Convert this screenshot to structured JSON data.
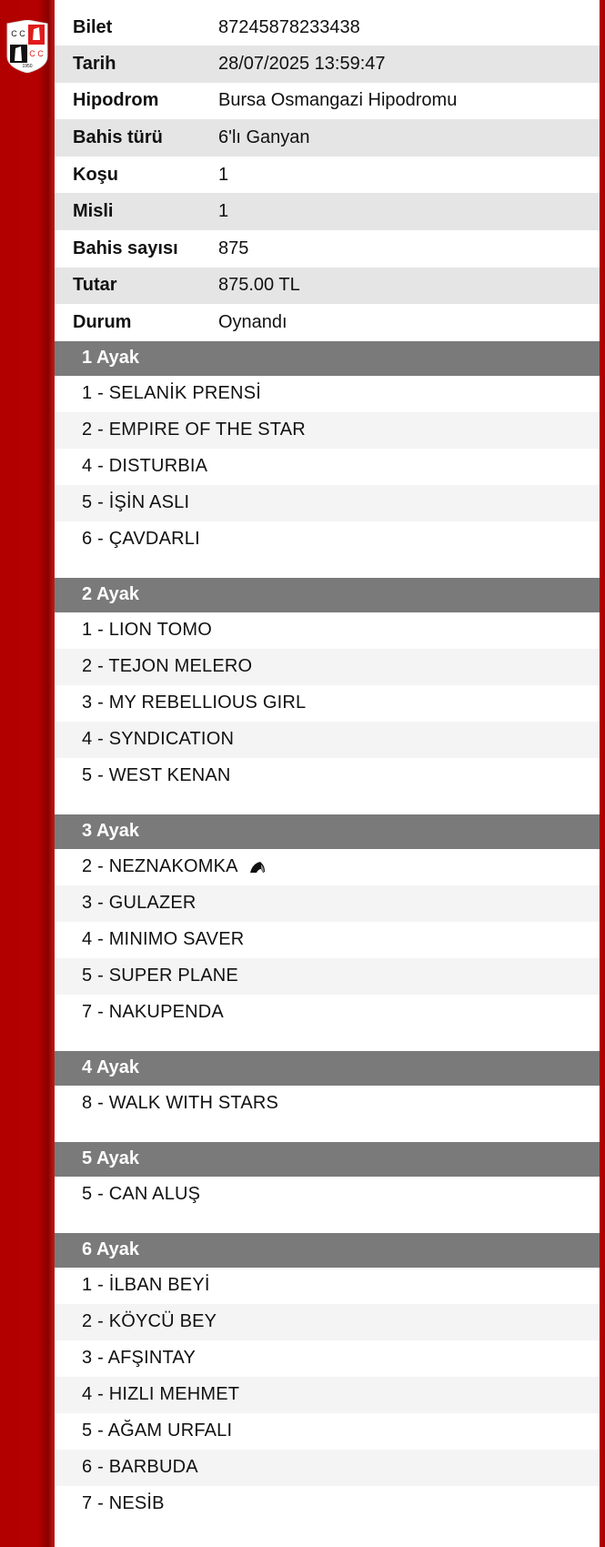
{
  "ticket": [
    {
      "label": "Bilet",
      "value": "87245878233438"
    },
    {
      "label": "Tarih",
      "value": "28/07/2025 13:59:47"
    },
    {
      "label": "Hipodrom",
      "value": "Bursa Osmangazi Hipodromu"
    },
    {
      "label": "Bahis türü",
      "value": "6'lı Ganyan"
    },
    {
      "label": "Koşu",
      "value": "1"
    },
    {
      "label": "Misli",
      "value": "1"
    },
    {
      "label": "Bahis sayısı",
      "value": "875"
    },
    {
      "label": "Tutar",
      "value": "875.00 TL"
    },
    {
      "label": "Durum",
      "value": "Oynandı"
    }
  ],
  "legs": [
    {
      "title": "1 Ayak",
      "horses": [
        "1 - SELANİK PRENSİ",
        "2 - EMPIRE OF THE STAR",
        "4 - DISTURBIA",
        "5 - İŞİN ASLI",
        "6 - ÇAVDARLI"
      ]
    },
    {
      "title": "2 Ayak",
      "horses": [
        "1 - LION TOMO",
        "2 - TEJON MELERO",
        "3 - MY REBELLIOUS GIRL",
        "4 - SYNDICATION",
        "5 - WEST KENAN"
      ]
    },
    {
      "title": "3 Ayak",
      "horses": [
        "2 - NEZNAKOMKA",
        "3 - GULAZER",
        "4 - MINIMO SAVER",
        "5 - SUPER PLANE",
        "7 - NAKUPENDA"
      ]
    },
    {
      "title": "4 Ayak",
      "horses": [
        "8 - WALK WITH STARS"
      ]
    },
    {
      "title": "5 Ayak",
      "horses": [
        "5 - CAN ALUŞ"
      ]
    },
    {
      "title": "6 Ayak",
      "horses": [
        "1 - İLBAN BEYİ",
        "2 - KÖYCÜ BEY",
        "3 - AFŞINTAY",
        "4 - HIZLI MEHMET",
        "5 - AĞAM URFALI",
        "6 - BARBUDA",
        "7 - NESİB"
      ]
    }
  ],
  "icons": {
    "logo": "club-crest-logo",
    "horse_marker": "horse-head-icon"
  },
  "logo_text": {
    "letters": "CC CC",
    "year": "1950"
  },
  "colors": {
    "brand_red": "#b00000",
    "header_gray": "#7a7a7a"
  }
}
